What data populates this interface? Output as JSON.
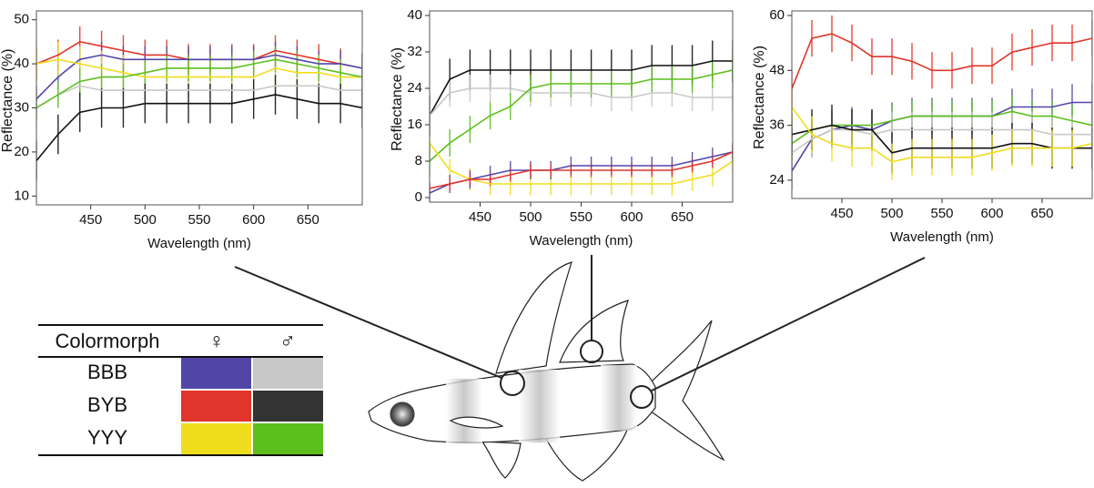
{
  "chart_data": [
    {
      "type": "line",
      "x_label": "Wavelength (nm)",
      "y_label": "Reflectance (%)",
      "x": [
        400,
        420,
        440,
        460,
        480,
        500,
        520,
        540,
        560,
        580,
        600,
        620,
        640,
        660,
        680,
        700
      ],
      "xlim": [
        400,
        700
      ],
      "xticks": [
        450,
        500,
        550,
        600,
        650
      ],
      "ylim": [
        8,
        52
      ],
      "yticks": [
        10,
        20,
        30,
        40,
        50
      ],
      "series": [
        {
          "color": "#e0352a",
          "error": 3.5,
          "values": [
            40,
            42,
            45,
            44,
            43,
            42,
            42,
            41,
            41,
            41,
            41,
            43,
            42,
            41,
            40,
            39
          ]
        },
        {
          "color": "#5146a8",
          "error": 3,
          "values": [
            32,
            37,
            41,
            42,
            41,
            41,
            41,
            41,
            41,
            41,
            41,
            42,
            41,
            40,
            40,
            39
          ]
        },
        {
          "color": "#f0dd1e",
          "error": 4,
          "values": [
            40,
            41,
            40,
            39,
            38,
            37,
            37,
            37,
            37,
            37,
            37,
            39,
            38,
            38,
            37,
            37
          ]
        },
        {
          "color": "#c8c8c8",
          "error": 3,
          "values": [
            30,
            33,
            35,
            34,
            34,
            34,
            34,
            34,
            34,
            34,
            34,
            35,
            35,
            35,
            34,
            34
          ]
        },
        {
          "color": "#5cbf1c",
          "error": 3,
          "values": [
            30,
            33,
            36,
            37,
            37,
            38,
            39,
            39,
            39,
            39,
            40,
            41,
            40,
            39,
            38,
            37
          ]
        },
        {
          "color": "#111111",
          "error": 4.5,
          "values": [
            18,
            24,
            29,
            30,
            30,
            31,
            31,
            31,
            31,
            31,
            32,
            33,
            32,
            31,
            31,
            30
          ]
        }
      ]
    },
    {
      "type": "line",
      "x_label": "Wavelength (nm)",
      "y_label": "Reflectance (%)",
      "x": [
        400,
        420,
        440,
        460,
        480,
        500,
        520,
        540,
        560,
        580,
        600,
        620,
        640,
        660,
        680,
        700
      ],
      "xlim": [
        400,
        700
      ],
      "xticks": [
        450,
        500,
        550,
        600,
        650
      ],
      "ylim": [
        -1,
        41
      ],
      "yticks": [
        0,
        8,
        16,
        24,
        32,
        40
      ],
      "series": [
        {
          "color": "#111111",
          "error": 4.5,
          "values": [
            18,
            26,
            28,
            28,
            28,
            28,
            28,
            28,
            28,
            28,
            28,
            29,
            29,
            29,
            30,
            30
          ]
        },
        {
          "color": "#c8c8c8",
          "error": 3,
          "values": [
            18,
            23,
            24,
            24,
            24,
            23,
            23,
            23,
            23,
            22,
            22,
            23,
            23,
            22,
            22,
            22
          ]
        },
        {
          "color": "#5cbf1c",
          "error": 3,
          "values": [
            8,
            12,
            15,
            18,
            20,
            24,
            25,
            25,
            25,
            25,
            25,
            26,
            26,
            26,
            27,
            28
          ]
        },
        {
          "color": "#f0dd1e",
          "error": 2.5,
          "values": [
            12,
            6,
            4,
            3,
            3,
            3,
            3,
            3,
            3,
            3,
            3,
            3,
            3,
            4,
            5,
            8
          ]
        },
        {
          "color": "#5146a8",
          "error": 2,
          "values": [
            1,
            3,
            4,
            5,
            6,
            6,
            6,
            7,
            7,
            7,
            7,
            7,
            7,
            8,
            9,
            10
          ]
        },
        {
          "color": "#e0352a",
          "error": 1.5,
          "values": [
            2,
            3,
            4,
            4,
            5,
            6,
            6,
            6,
            6,
            6,
            6,
            6,
            6,
            7,
            8,
            10
          ]
        }
      ]
    },
    {
      "type": "line",
      "x_label": "Wavelength (nm)",
      "y_label": "Reflectance (%)",
      "x": [
        400,
        420,
        440,
        460,
        480,
        500,
        520,
        540,
        560,
        580,
        600,
        620,
        640,
        660,
        680,
        700
      ],
      "xlim": [
        400,
        700
      ],
      "xticks": [
        450,
        500,
        550,
        600,
        650
      ],
      "ylim": [
        20,
        61
      ],
      "yticks": [
        24,
        36,
        48,
        60
      ],
      "series": [
        {
          "color": "#e0352a",
          "error": 4,
          "values": [
            44,
            55,
            56,
            54,
            51,
            51,
            50,
            48,
            48,
            49,
            49,
            52,
            53,
            54,
            54,
            55
          ]
        },
        {
          "color": "#5146a8",
          "error": 4,
          "values": [
            26,
            33,
            35,
            36,
            35,
            37,
            38,
            38,
            38,
            38,
            38,
            40,
            40,
            40,
            41,
            41
          ]
        },
        {
          "color": "#5cbf1c",
          "error": 3.5,
          "values": [
            32,
            35,
            36,
            36,
            36,
            37,
            38,
            38,
            38,
            38,
            38,
            39,
            38,
            38,
            37,
            36
          ]
        },
        {
          "color": "#c8c8c8",
          "error": 4,
          "values": [
            30,
            33,
            35,
            35,
            34,
            35,
            35,
            35,
            35,
            35,
            35,
            35,
            35,
            34,
            34,
            34
          ]
        },
        {
          "color": "#111111",
          "error": 4.5,
          "values": [
            34,
            35,
            36,
            35,
            35,
            30,
            31,
            31,
            31,
            31,
            31,
            32,
            32,
            31,
            31,
            31
          ]
        },
        {
          "color": "#f0dd1e",
          "error": 4,
          "values": [
            40,
            34,
            32,
            31,
            31,
            28,
            29,
            29,
            29,
            29,
            30,
            31,
            31,
            31,
            31,
            32
          ]
        }
      ]
    }
  ],
  "table": {
    "header": [
      "Colormorph",
      "♀",
      "♂"
    ],
    "rows": [
      {
        "label": "BBB",
        "female_color": "#5146a8",
        "male_color": "#c8c8c8"
      },
      {
        "label": "BYB",
        "female_color": "#e0352a",
        "male_color": "#333333"
      },
      {
        "label": "YYY",
        "female_color": "#f0dd1e",
        "male_color": "#5cbf1c"
      }
    ]
  }
}
